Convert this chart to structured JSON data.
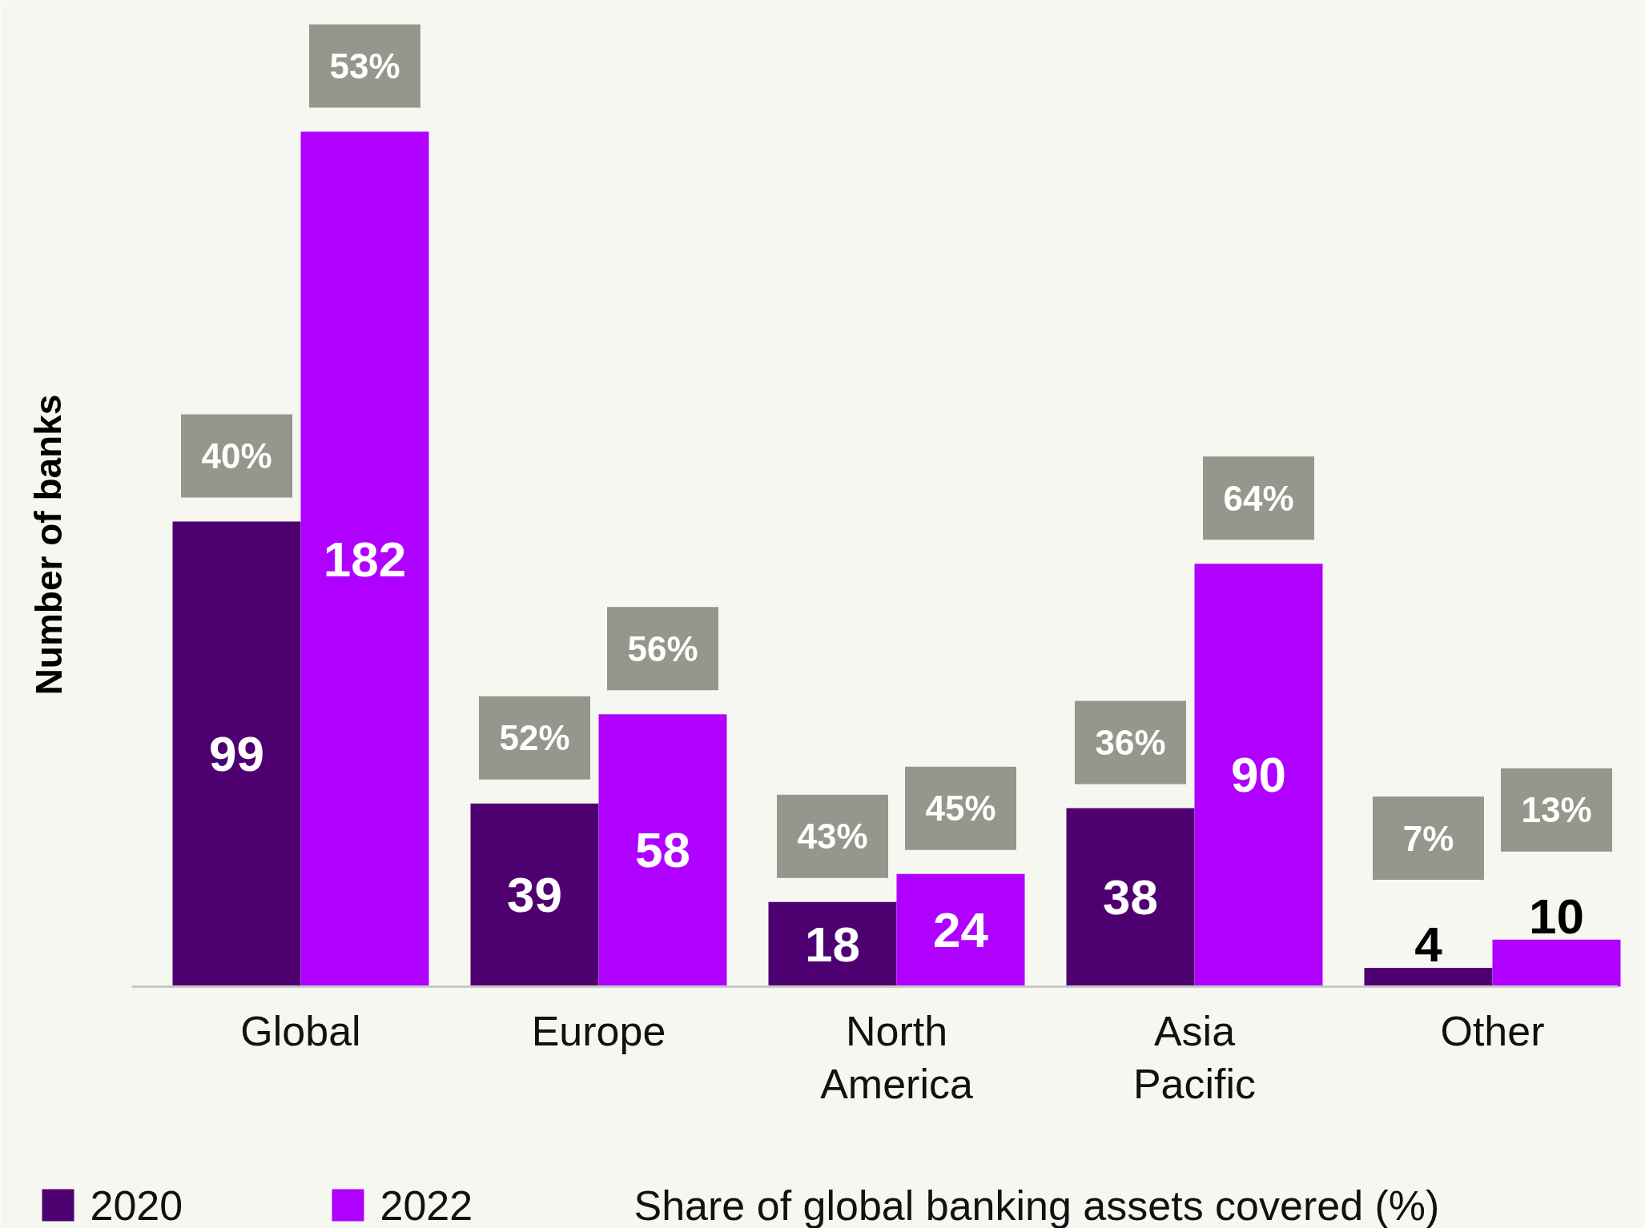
{
  "chart_data": {
    "type": "bar",
    "ylabel": "Number of banks",
    "categories": [
      "Global",
      "Europe",
      "North America",
      "Asia Pacific",
      "Other"
    ],
    "series": [
      {
        "name": "2020",
        "color": "#4e0070",
        "values": [
          99,
          39,
          18,
          38,
          4
        ]
      },
      {
        "name": "2022",
        "color": "#b000ff",
        "values": [
          182,
          58,
          24,
          90,
          10
        ]
      }
    ],
    "data_labels": true,
    "legend": "bottom",
    "annotations": [
      "40%",
      "53%",
      "52%",
      "56%",
      "43%",
      "45%",
      "36%",
      "64%",
      "7%",
      "13%",
      "Share of global banking assets covered (%)"
    ]
  }
}
